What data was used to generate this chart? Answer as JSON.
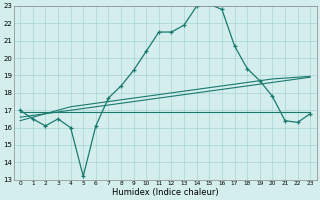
{
  "xlabel": "Humidex (Indice chaleur)",
  "x_values": [
    0,
    1,
    2,
    3,
    4,
    5,
    6,
    7,
    8,
    9,
    10,
    11,
    12,
    13,
    14,
    15,
    16,
    17,
    18,
    19,
    20,
    21,
    22,
    23
  ],
  "line1_y": [
    17.0,
    16.5,
    16.1,
    16.5,
    16.0,
    13.2,
    16.1,
    17.7,
    18.4,
    19.3,
    20.4,
    21.5,
    21.5,
    21.9,
    23.0,
    23.1,
    22.8,
    20.7,
    19.4,
    18.7,
    17.8,
    16.4,
    16.3,
    16.8
  ],
  "line2_y": [
    16.9,
    16.9,
    16.9,
    16.9,
    16.9,
    16.9,
    16.9,
    16.9,
    16.9,
    16.9,
    16.9,
    16.9,
    16.9,
    16.9,
    16.9,
    16.9,
    16.9,
    16.9,
    16.9,
    16.9,
    16.9,
    16.9,
    16.9,
    16.9
  ],
  "line3_y": [
    16.6,
    16.7,
    16.8,
    16.9,
    17.0,
    17.1,
    17.2,
    17.3,
    17.4,
    17.5,
    17.6,
    17.7,
    17.8,
    17.9,
    18.0,
    18.1,
    18.2,
    18.3,
    18.4,
    18.5,
    18.6,
    18.7,
    18.8,
    18.9
  ],
  "line4_y": [
    16.4,
    16.6,
    16.8,
    17.0,
    17.2,
    17.3,
    17.4,
    17.5,
    17.6,
    17.7,
    17.8,
    17.9,
    18.0,
    18.1,
    18.2,
    18.3,
    18.4,
    18.5,
    18.6,
    18.7,
    18.8,
    18.85,
    18.9,
    18.95
  ],
  "line_color": "#1a7a6e",
  "bg_color": "#d4eded",
  "grid_color": "#a8d4d4",
  "ylim": [
    13,
    23
  ],
  "xlim": [
    -0.5,
    23.5
  ],
  "yticks": [
    13,
    14,
    15,
    16,
    17,
    18,
    19,
    20,
    21,
    22,
    23
  ],
  "xticks": [
    0,
    1,
    2,
    3,
    4,
    5,
    6,
    7,
    8,
    9,
    10,
    11,
    12,
    13,
    14,
    15,
    16,
    17,
    18,
    19,
    20,
    21,
    22,
    23
  ]
}
